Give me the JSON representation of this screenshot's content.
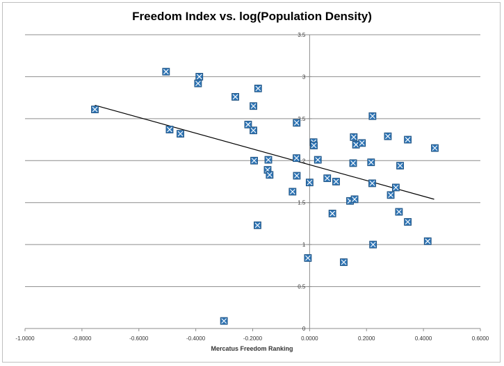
{
  "chart_data": {
    "type": "scatter",
    "title": "Freedom Index vs. log(Population Density)",
    "xlabel": "Mercatus  Freedom  Ranking",
    "ylabel": "",
    "xlim": [
      -1.0,
      0.6
    ],
    "ylim": [
      0,
      3.5
    ],
    "x_ticks": [
      "-1.0000",
      "-0.8000",
      "-0.6000",
      "-0.4000",
      "-0.2000",
      "0.0000",
      "0.2000",
      "0.4000",
      "0.6000"
    ],
    "y_ticks": [
      "0",
      "0.5",
      "1",
      "1.5",
      "2",
      "2.5",
      "3",
      "3.5"
    ],
    "grid": "horizontal",
    "legend": "none",
    "marker_color": "#2e75b6",
    "trendline_color": "#000000",
    "trendline": {
      "x": [
        -0.7545,
        0.4376
      ],
      "y": [
        2.66,
        1.54
      ]
    },
    "points": [
      {
        "x": -0.7545,
        "y": 2.61
      },
      {
        "x": -0.5045,
        "y": 3.06
      },
      {
        "x": -0.492,
        "y": 2.37
      },
      {
        "x": -0.454,
        "y": 2.32
      },
      {
        "x": -0.3875,
        "y": 3.0
      },
      {
        "x": -0.392,
        "y": 2.92
      },
      {
        "x": -0.261,
        "y": 2.76
      },
      {
        "x": -0.181,
        "y": 2.86
      },
      {
        "x": -0.1975,
        "y": 2.65
      },
      {
        "x": -0.216,
        "y": 2.43
      },
      {
        "x": -0.1975,
        "y": 2.36
      },
      {
        "x": -0.195,
        "y": 2.0
      },
      {
        "x": -0.145,
        "y": 2.01
      },
      {
        "x": -0.1475,
        "y": 1.89
      },
      {
        "x": -0.1405,
        "y": 1.83
      },
      {
        "x": -0.183,
        "y": 1.23
      },
      {
        "x": -0.301,
        "y": 0.09
      },
      {
        "x": -0.0455,
        "y": 2.45
      },
      {
        "x": -0.046,
        "y": 2.03
      },
      {
        "x": -0.045,
        "y": 1.82
      },
      {
        "x": -0.06,
        "y": 1.63
      },
      {
        "x": 0.0,
        "y": 1.74
      },
      {
        "x": 0.014,
        "y": 2.22
      },
      {
        "x": 0.015,
        "y": 2.18
      },
      {
        "x": 0.029,
        "y": 2.01
      },
      {
        "x": 0.062,
        "y": 1.79
      },
      {
        "x": 0.093,
        "y": 1.75
      },
      {
        "x": 0.08,
        "y": 1.37
      },
      {
        "x": -0.006,
        "y": 0.84
      },
      {
        "x": 0.12,
        "y": 0.79
      },
      {
        "x": 0.155,
        "y": 2.28
      },
      {
        "x": 0.163,
        "y": 2.19
      },
      {
        "x": 0.184,
        "y": 2.21
      },
      {
        "x": 0.153,
        "y": 1.97
      },
      {
        "x": 0.142,
        "y": 1.52
      },
      {
        "x": 0.158,
        "y": 1.54
      },
      {
        "x": 0.221,
        "y": 2.53
      },
      {
        "x": 0.216,
        "y": 1.98
      },
      {
        "x": 0.22,
        "y": 1.73
      },
      {
        "x": 0.223,
        "y": 1.0
      },
      {
        "x": 0.275,
        "y": 2.29
      },
      {
        "x": 0.318,
        "y": 1.94
      },
      {
        "x": 0.303,
        "y": 1.68
      },
      {
        "x": 0.285,
        "y": 1.59
      },
      {
        "x": 0.314,
        "y": 1.39
      },
      {
        "x": 0.345,
        "y": 2.25
      },
      {
        "x": 0.345,
        "y": 1.27
      },
      {
        "x": 0.44,
        "y": 2.15
      },
      {
        "x": 0.415,
        "y": 1.04
      }
    ]
  }
}
